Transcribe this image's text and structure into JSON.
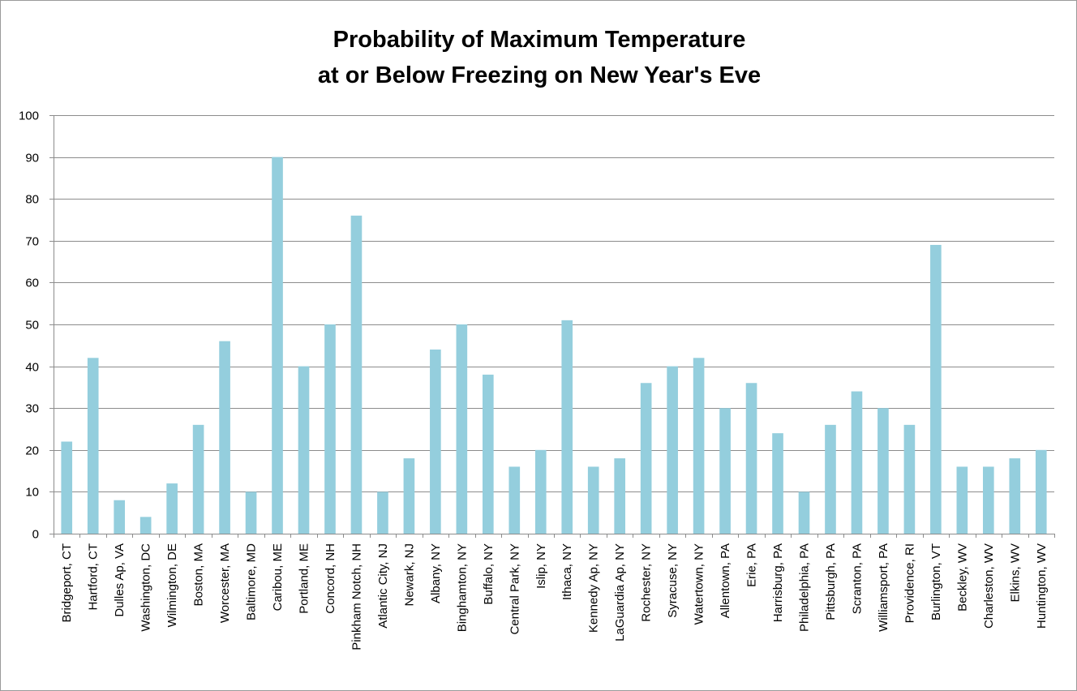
{
  "chart_data": {
    "type": "bar",
    "title_lines": [
      "Probability of Maximum Temperature",
      "at or Below Freezing on New Year's Eve"
    ],
    "xlabel": "",
    "ylabel": "",
    "ylim": [
      0,
      100
    ],
    "yticks": [
      0,
      10,
      20,
      30,
      40,
      50,
      60,
      70,
      80,
      90,
      100
    ],
    "grid": true,
    "bar_color": "#94cedd",
    "categories": [
      "Bridgeport, CT",
      "Hartford, CT",
      "Dulles Ap, VA",
      "Washington, DC",
      "Wilmington, DE",
      "Boston, MA",
      "Worcester, MA",
      "Baltimore, MD",
      "Caribou, ME",
      "Portland, ME",
      "Concord, NH",
      "Pinkham Notch, NH",
      "Atlantic City, NJ",
      "Newark, NJ",
      "Albany, NY",
      "Binghamton, NY",
      "Buffalo, NY",
      "Central Park, NY",
      "Islip, NY",
      "Ithaca, NY",
      "Kennedy Ap, NY",
      "LaGuardia Ap, NY",
      "Rochester, NY",
      "Syracuse, NY",
      "Watertown, NY",
      "Allentown, PA",
      "Erie, PA",
      "Harrisburg, PA",
      "Philadelphia, PA",
      "Pittsburgh, PA",
      "Scranton, PA",
      "Williamsport, PA",
      "Providence, RI",
      "Burlington, VT",
      "Beckley, WV",
      "Charleston, WV",
      "Elkins, WV",
      "Huntington, WV"
    ],
    "values": [
      22,
      42,
      8,
      4,
      12,
      26,
      46,
      10,
      90,
      40,
      50,
      76,
      10,
      18,
      44,
      50,
      38,
      16,
      20,
      51,
      16,
      18,
      36,
      40,
      42,
      30,
      36,
      24,
      10,
      26,
      34,
      30,
      26,
      69,
      16,
      16,
      18,
      20
    ]
  }
}
